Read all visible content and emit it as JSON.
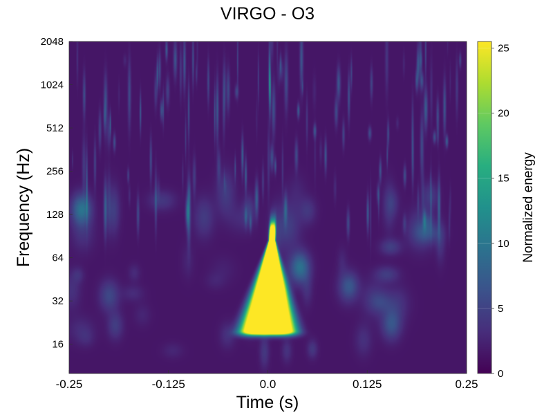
{
  "chart_data": {
    "type": "heatmap",
    "title": "VIRGO - O3",
    "xlabel": "Time (s)",
    "ylabel": "Frequency (Hz)",
    "xlim": [
      -0.25,
      0.25
    ],
    "ylim": [
      10,
      2048
    ],
    "y_scale": "log2",
    "x_ticks": [
      -0.25,
      -0.125,
      0.0,
      0.125,
      0.25
    ],
    "x_tick_labels": [
      "-0.25",
      "-0.125",
      "0.0",
      "0.125",
      "0.25"
    ],
    "y_ticks": [
      16,
      32,
      64,
      128,
      256,
      512,
      1024,
      2048
    ],
    "y_tick_labels": [
      "16",
      "32",
      "64",
      "128",
      "256",
      "512",
      "1024",
      "2048"
    ],
    "colorbar": {
      "label": "Normalized energy",
      "range": [
        0,
        25.5
      ],
      "colormap": "viridis",
      "ticks": [
        0,
        5,
        10,
        15,
        20,
        25
      ],
      "tick_labels": [
        "0",
        "5",
        "10",
        "15",
        "20",
        "25"
      ]
    },
    "grid": false,
    "features": [
      {
        "type": "chirp",
        "t_start": -0.035,
        "t_end": 0.035,
        "f_low": 20,
        "f_high": 90,
        "peak_energy": 25.5
      },
      {
        "type": "blob",
        "t": 0.04,
        "f": 55,
        "energy": 8
      },
      {
        "type": "blob",
        "t": -0.235,
        "f": 140,
        "energy": 8
      },
      {
        "type": "blob",
        "t": 0.155,
        "f": 22,
        "energy": 5
      },
      {
        "type": "blob",
        "t": 0.1,
        "f": 40,
        "energy": 4
      },
      {
        "type": "blob",
        "t": -0.2,
        "f": 35,
        "energy": 4
      }
    ],
    "background_level": 2.5
  }
}
